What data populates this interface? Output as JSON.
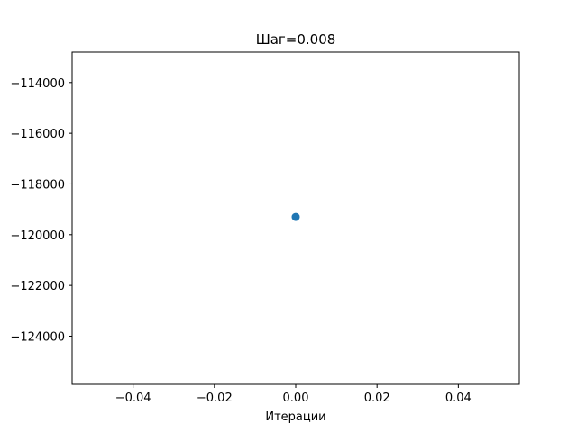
{
  "chart_data": {
    "type": "scatter",
    "title": "Шаг=0.008",
    "xlabel": "Итерации",
    "ylabel": "",
    "xlim": [
      -0.055,
      0.055
    ],
    "ylim": [
      -125900,
      -112800
    ],
    "xticks": [
      -0.04,
      -0.02,
      0.0,
      0.02,
      0.04
    ],
    "xtick_labels": [
      "−0.04",
      "−0.02",
      "0.00",
      "0.02",
      "0.04"
    ],
    "yticks": [
      -114000,
      -116000,
      -118000,
      -120000,
      -122000,
      -124000
    ],
    "ytick_labels": [
      "−114000",
      "−116000",
      "−118000",
      "−120000",
      "−122000",
      "−124000"
    ],
    "grid": false,
    "series": [
      {
        "x": [
          0
        ],
        "y": [
          -119300
        ],
        "color": "#1f77b4"
      }
    ]
  }
}
